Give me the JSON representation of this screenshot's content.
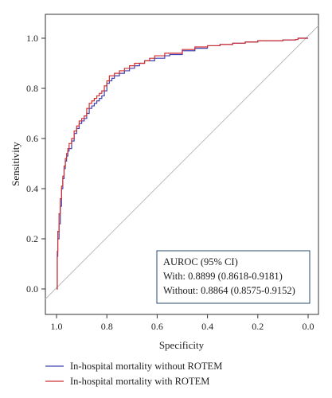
{
  "chart_data": {
    "type": "line",
    "xlabel": "Specificity",
    "ylabel": "Sensitivity",
    "x_reversed": true,
    "xlim": [
      1.0,
      0.0
    ],
    "ylim": [
      -0.05,
      1.05
    ],
    "x_ticks": [
      "1.0",
      "0.8",
      "0.6",
      "0.4",
      "0.2",
      "0.0"
    ],
    "y_ticks": [
      "0.0",
      "0.2",
      "0.4",
      "0.6",
      "0.8",
      "1.0"
    ],
    "grid": false,
    "annotation": {
      "title": "AUROC (95% CI)",
      "with": "With: 0.8899 (0.8618-0.9181)",
      "without": "Without: 0.8864 (0.8575-0.9152)"
    },
    "series": [
      {
        "name": "In-hospital mortality without ROTEM",
        "color": "#4040b0",
        "specificity": [
          1.0,
          0.997,
          0.995,
          0.99,
          0.985,
          0.98,
          0.975,
          0.97,
          0.965,
          0.96,
          0.955,
          0.95,
          0.94,
          0.93,
          0.92,
          0.91,
          0.9,
          0.89,
          0.88,
          0.87,
          0.86,
          0.85,
          0.84,
          0.83,
          0.82,
          0.81,
          0.8,
          0.79,
          0.78,
          0.77,
          0.75,
          0.73,
          0.71,
          0.69,
          0.67,
          0.65,
          0.63,
          0.61,
          0.59,
          0.57,
          0.55,
          0.5,
          0.45,
          0.4,
          0.35,
          0.3,
          0.25,
          0.2,
          0.15,
          0.1,
          0.05,
          0.04,
          0.0
        ],
        "sensitivity": [
          0.0,
          0.13,
          0.2,
          0.26,
          0.33,
          0.4,
          0.44,
          0.48,
          0.51,
          0.53,
          0.55,
          0.56,
          0.59,
          0.62,
          0.64,
          0.66,
          0.67,
          0.68,
          0.7,
          0.72,
          0.73,
          0.74,
          0.75,
          0.76,
          0.77,
          0.79,
          0.82,
          0.83,
          0.84,
          0.85,
          0.86,
          0.87,
          0.88,
          0.89,
          0.9,
          0.91,
          0.91,
          0.92,
          0.92,
          0.93,
          0.935,
          0.95,
          0.96,
          0.97,
          0.975,
          0.98,
          0.985,
          0.99,
          0.99,
          0.993,
          0.995,
          1.0,
          1.0
        ]
      },
      {
        "name": "In-hospital mortality with ROTEM",
        "color": "#d03030",
        "specificity": [
          1.0,
          0.997,
          0.995,
          0.99,
          0.985,
          0.98,
          0.975,
          0.97,
          0.965,
          0.96,
          0.955,
          0.95,
          0.94,
          0.93,
          0.92,
          0.91,
          0.9,
          0.89,
          0.88,
          0.87,
          0.86,
          0.85,
          0.84,
          0.83,
          0.82,
          0.81,
          0.8,
          0.79,
          0.78,
          0.77,
          0.75,
          0.73,
          0.71,
          0.69,
          0.67,
          0.65,
          0.63,
          0.61,
          0.59,
          0.57,
          0.55,
          0.5,
          0.45,
          0.4,
          0.35,
          0.3,
          0.25,
          0.2,
          0.15,
          0.1,
          0.05,
          0.04,
          0.0
        ],
        "sensitivity": [
          0.0,
          0.15,
          0.23,
          0.3,
          0.36,
          0.41,
          0.45,
          0.49,
          0.52,
          0.54,
          0.56,
          0.58,
          0.6,
          0.63,
          0.65,
          0.67,
          0.68,
          0.69,
          0.72,
          0.74,
          0.75,
          0.76,
          0.77,
          0.78,
          0.79,
          0.81,
          0.83,
          0.85,
          0.85,
          0.86,
          0.87,
          0.88,
          0.89,
          0.9,
          0.9,
          0.91,
          0.92,
          0.93,
          0.93,
          0.94,
          0.94,
          0.955,
          0.965,
          0.97,
          0.975,
          0.98,
          0.985,
          0.99,
          0.99,
          0.993,
          0.995,
          1.0,
          1.0
        ]
      }
    ]
  }
}
